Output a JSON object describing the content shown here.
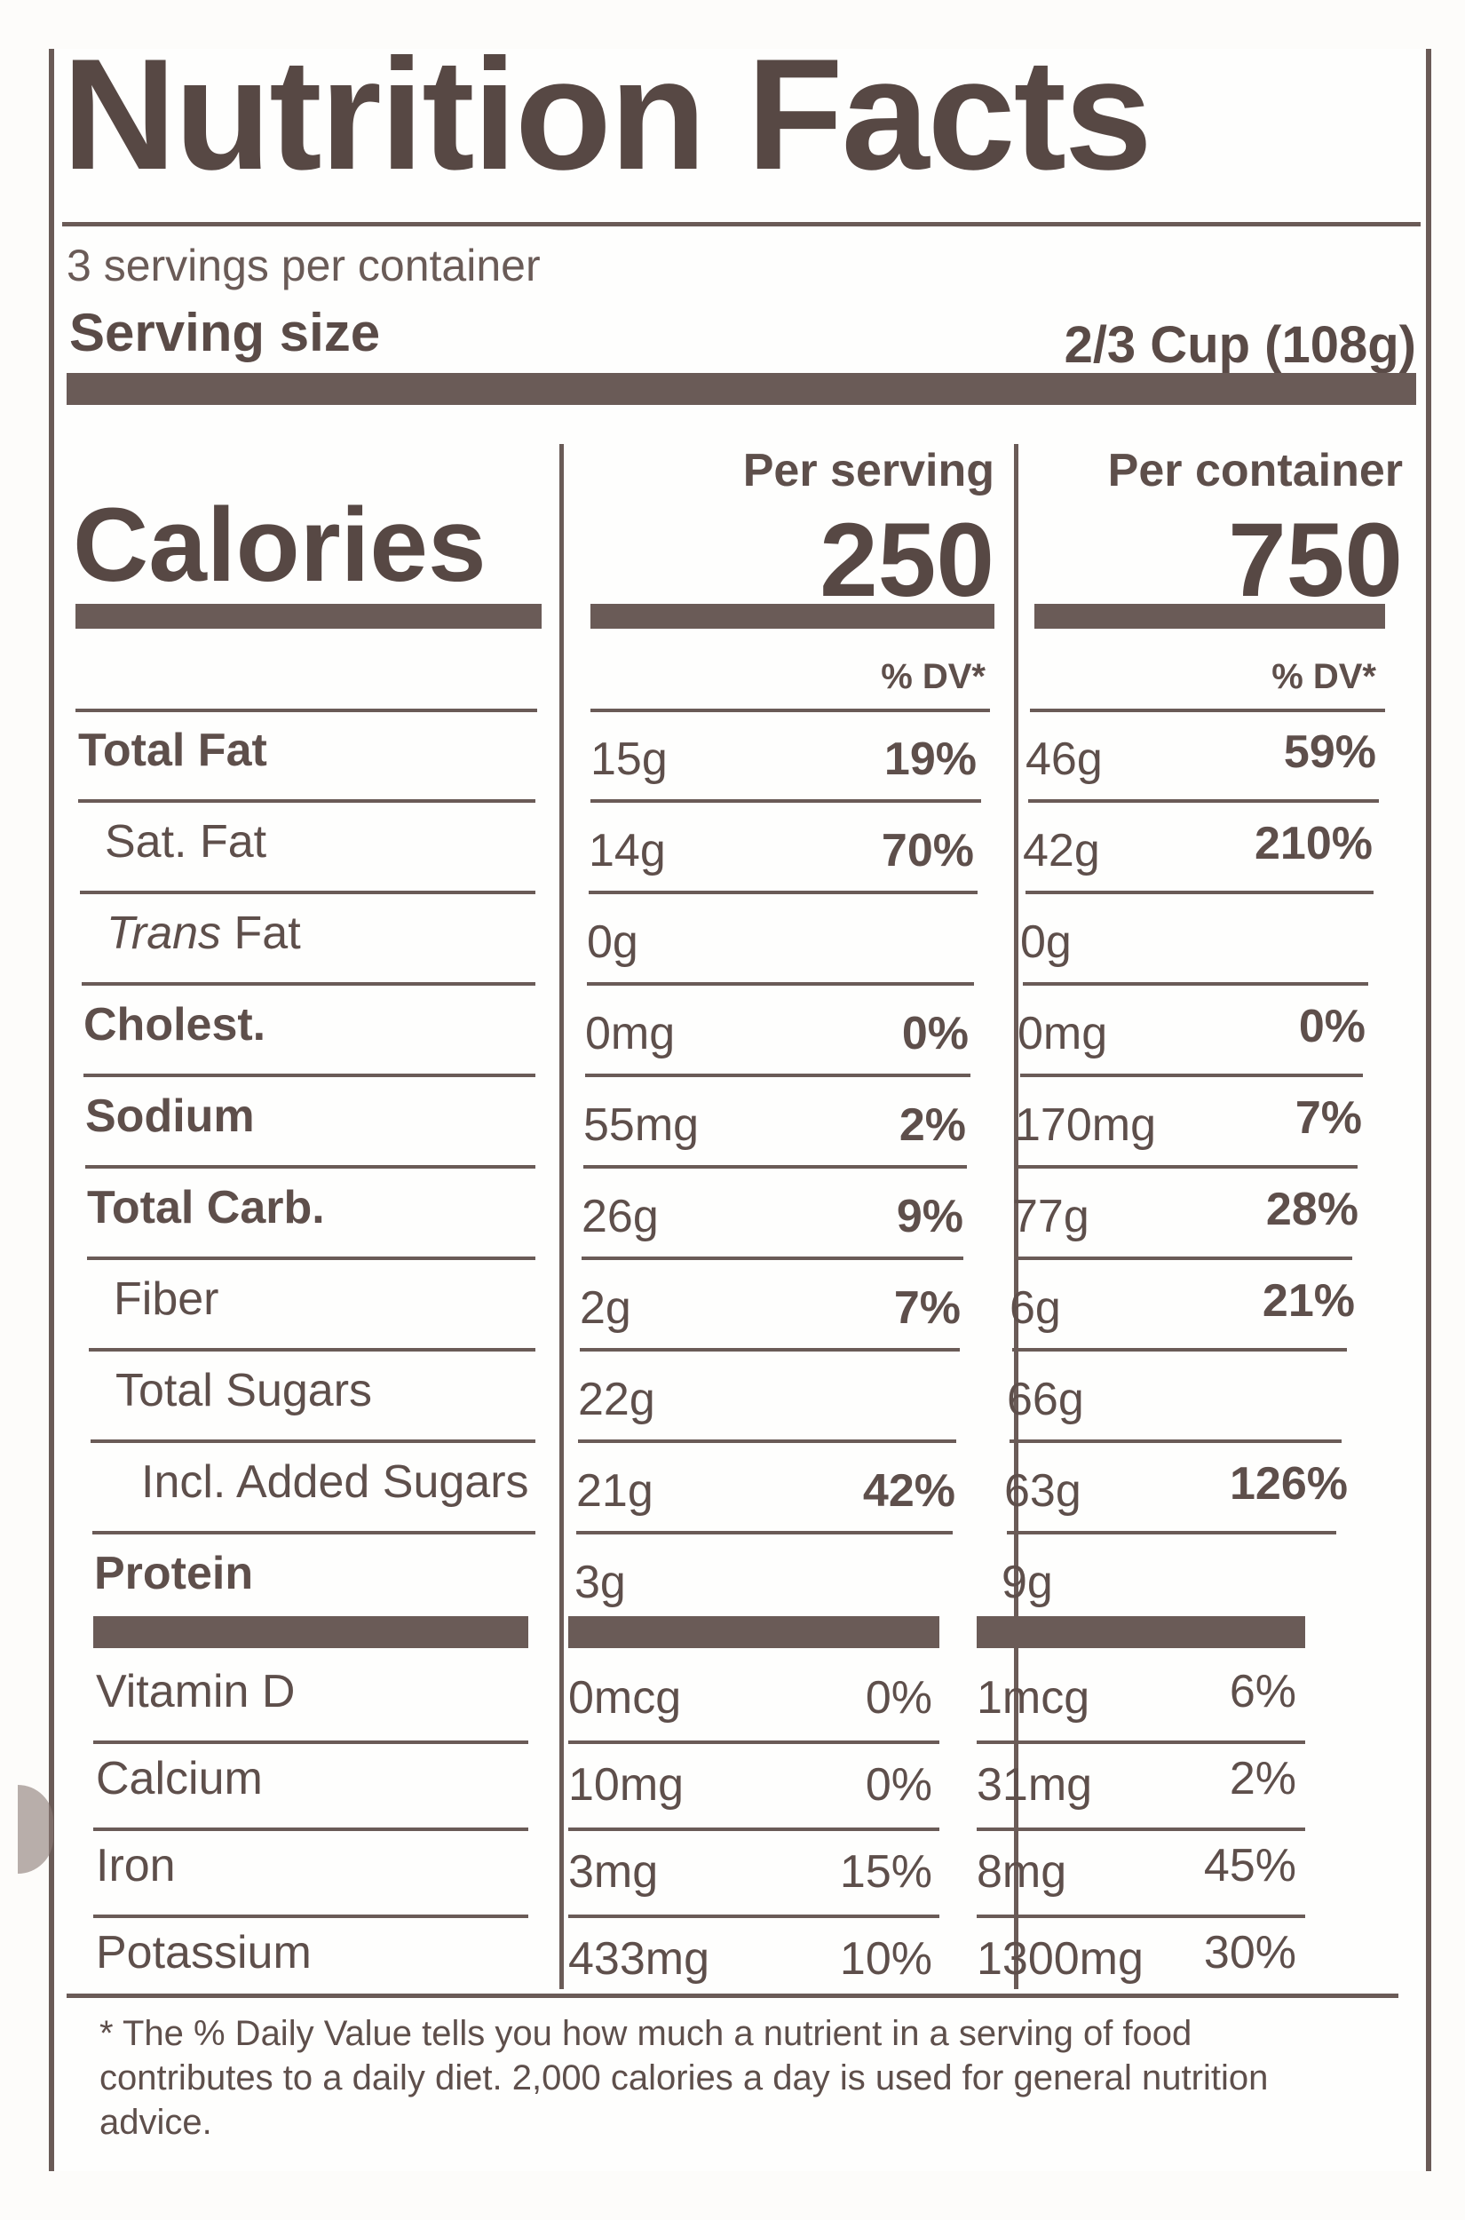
{
  "title": "Nutrition Facts",
  "servings_per_container": "3 servings per container",
  "serving_size_label": "Serving size",
  "serving_size_value": "2/3 Cup (108g)",
  "calories_label": "Calories",
  "columns": [
    {
      "header": "Per serving",
      "calories": "250",
      "dv_header": "% DV*"
    },
    {
      "header": "Per container",
      "calories": "750",
      "dv_header": "% DV*"
    }
  ],
  "nutrients": [
    {
      "name": "Total Fat",
      "bold": true,
      "indent": 0,
      "serving_amt": "15g",
      "serving_dv": "19%",
      "container_amt": "46g",
      "container_dv": "59%"
    },
    {
      "name": "Sat. Fat",
      "bold": false,
      "indent": 1,
      "serving_amt": "14g",
      "serving_dv": "70%",
      "container_amt": "42g",
      "container_dv": "210%"
    },
    {
      "name_italic": "Trans",
      "name": " Fat",
      "bold": false,
      "indent": 1,
      "serving_amt": "0g",
      "serving_dv": "",
      "container_amt": "0g",
      "container_dv": ""
    },
    {
      "name": "Cholest.",
      "bold": true,
      "indent": 0,
      "serving_amt": "0mg",
      "serving_dv": "0%",
      "container_amt": "0mg",
      "container_dv": "0%"
    },
    {
      "name": "Sodium",
      "bold": true,
      "indent": 0,
      "serving_amt": "55mg",
      "serving_dv": "2%",
      "container_amt": "170mg",
      "container_dv": "7%"
    },
    {
      "name": "Total Carb.",
      "bold": true,
      "indent": 0,
      "serving_amt": "26g",
      "serving_dv": "9%",
      "container_amt": "77g",
      "container_dv": "28%"
    },
    {
      "name": "Fiber",
      "bold": false,
      "indent": 1,
      "serving_amt": "2g",
      "serving_dv": "7%",
      "container_amt": "6g",
      "container_dv": "21%"
    },
    {
      "name": "Total Sugars",
      "bold": false,
      "indent": 1,
      "serving_amt": "22g",
      "serving_dv": "",
      "container_amt": "66g",
      "container_dv": ""
    },
    {
      "name": "Incl. Added Sugars",
      "bold": false,
      "indent": 2,
      "serving_amt": "21g",
      "serving_dv": "42%",
      "container_amt": "63g",
      "container_dv": "126%"
    },
    {
      "name": "Protein",
      "bold": true,
      "indent": 0,
      "serving_amt": "3g",
      "serving_dv": "",
      "container_amt": "9g",
      "container_dv": ""
    }
  ],
  "vitamins": [
    {
      "name": "Vitamin D",
      "serving_amt": "0mcg",
      "serving_dv": "0%",
      "container_amt": "1mcg",
      "container_dv": "6%"
    },
    {
      "name": "Calcium",
      "serving_amt": "10mg",
      "serving_dv": "0%",
      "container_amt": "31mg",
      "container_dv": "2%"
    },
    {
      "name": "Iron",
      "serving_amt": "3mg",
      "serving_dv": "15%",
      "container_amt": "8mg",
      "container_dv": "45%"
    },
    {
      "name": "Potassium",
      "serving_amt": "433mg",
      "serving_dv": "10%",
      "container_amt": "1300mg",
      "container_dv": "30%"
    }
  ],
  "footnote": "* The % Daily Value tells you how much a nutrient in a serving of food contributes to a daily diet. 2,000 calories a day is used for general nutrition advice.",
  "colors": {
    "ink": "#5a4b47",
    "bar": "#6a5b57",
    "paper": "#fefefd"
  }
}
